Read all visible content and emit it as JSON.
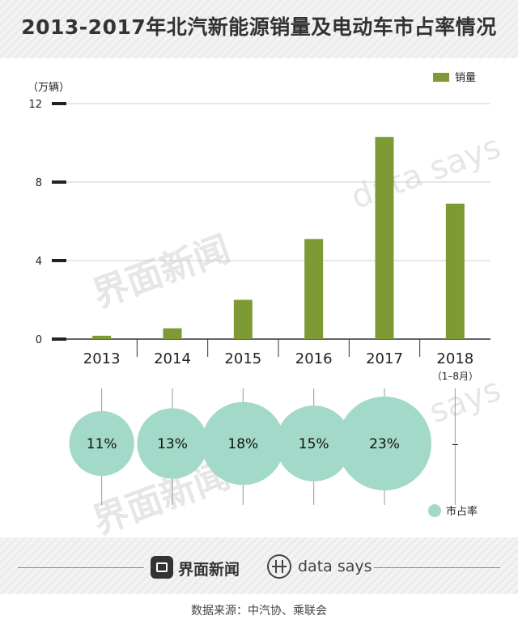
{
  "title": "2013-2017年北汽新能源销量及电动车市占率情况",
  "unit_label": "（万辆）",
  "colors": {
    "bar": "#7e9a35",
    "bubble": "#a3d9c8",
    "grid": "#cfcfcf",
    "axis": "#222222"
  },
  "watermarks": {
    "brand_cn": "界面新闻",
    "brand_en": "data says"
  },
  "chart_data": {
    "type": "bar",
    "title": "2013-2017年北汽新能源销量及电动车市占率情况",
    "ylabel": "（万辆）",
    "ylim": [
      0,
      12
    ],
    "yticks": [
      0,
      4,
      8,
      12
    ],
    "grid": true,
    "legend_position": "top-right",
    "categories": [
      "2013",
      "2014",
      "2015",
      "2016",
      "2017",
      "2018"
    ],
    "category_sublabels": [
      "",
      "",
      "",
      "",
      "",
      "（1–8月）"
    ],
    "series": [
      {
        "name": "销量",
        "values": [
          0.17,
          0.55,
          2.0,
          5.1,
          10.3,
          6.9
        ]
      }
    ],
    "market_share": {
      "name": "市占率",
      "values": [
        11,
        13,
        18,
        15,
        23,
        null
      ],
      "labels": [
        "11%",
        "13%",
        "18%",
        "15%",
        "23%",
        "–"
      ]
    }
  },
  "footer": {
    "brand": "界面新闻",
    "brand_en": "data says",
    "source": "数据来源：中汽协、乘联会"
  }
}
